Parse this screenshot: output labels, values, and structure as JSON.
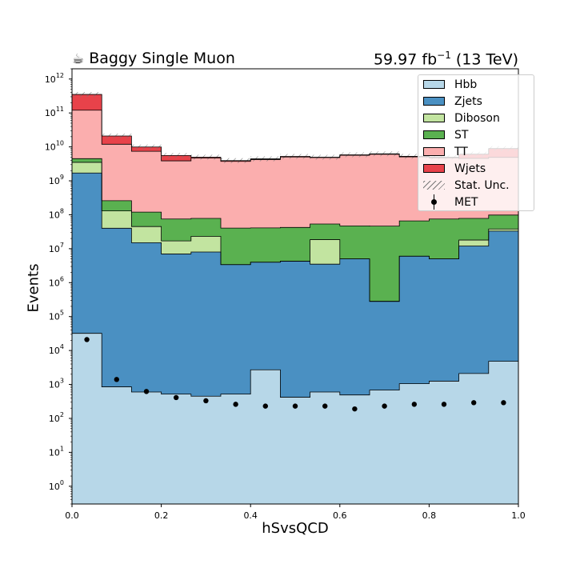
{
  "header": {
    "mug_icon": "coffee-mug-icon",
    "left_title": "Baggy Single Muon",
    "right_title_prefix": "59.97 fb",
    "right_title_sup": "−1",
    "right_title_suffix": " (13 TeV)"
  },
  "chart_data": {
    "type": "bar",
    "stacked": true,
    "xlabel": "hSvsQCD",
    "ylabel": "Events",
    "xlim": [
      0,
      1
    ],
    "ylim": [
      0.3,
      2000000000000
    ],
    "yscale": "log",
    "x_ticks": [
      "0.0",
      "0.2",
      "0.4",
      "0.6",
      "0.8",
      "1.0"
    ],
    "y_ticks": [
      "10^0",
      "10^1",
      "10^2",
      "10^3",
      "10^4",
      "10^5",
      "10^6",
      "10^7",
      "10^8",
      "10^9",
      "10^10",
      "10^11",
      "10^12"
    ],
    "bin_edges": [
      0,
      0.0667,
      0.1333,
      0.2,
      0.2667,
      0.3333,
      0.4,
      0.4667,
      0.5333,
      0.6,
      0.6667,
      0.7333,
      0.8,
      0.8667,
      0.9333,
      1.0
    ],
    "series": [
      {
        "name": "Hbb",
        "color": "#b7d7e8",
        "values": [
          32000,
          850,
          600,
          520,
          450,
          520,
          2700,
          420,
          600,
          490,
          680,
          1050,
          1250,
          2100,
          4800
        ]
      },
      {
        "name": "Zjets",
        "color": "#4a90c2",
        "values": [
          1700000000,
          40000000,
          15000000,
          7000000,
          8000000,
          3400000,
          4000000,
          4300000,
          3500000,
          5000000,
          280000,
          6000000,
          5000000,
          12000000,
          33000000
        ]
      },
      {
        "name": "Diboson",
        "color": "#c2e4a0",
        "values": [
          1800000000,
          90000000,
          30000000,
          10000000,
          15000000,
          0,
          0,
          0,
          15000000,
          0,
          0,
          0,
          0,
          6000000,
          5000000
        ]
      },
      {
        "name": "ST",
        "color": "#5ab150",
        "values": [
          1000000000,
          130000000,
          75000000,
          58000000,
          55000000,
          37000000,
          37000000,
          38000000,
          35000000,
          42000000,
          46000000,
          60000000,
          70000000,
          60000000,
          60000000
        ]
      },
      {
        "name": "TT",
        "color": "#fbaeae",
        "values": [
          116000000000,
          11700000000,
          7300000000,
          3800000000,
          4600000000,
          3700000000,
          4200000000,
          5000000000,
          4800000000,
          5600000000,
          6000000000,
          5000000000,
          4700000000,
          4500000000,
          4800000000
        ]
      },
      {
        "name": "Wjets",
        "color": "#e8424a",
        "values": [
          230000000000,
          9000000000,
          2500000000,
          1700000000,
          300000000,
          200000000,
          200000000,
          200000000,
          100000000,
          200000000,
          200000000,
          200000000,
          200000000,
          1500000000,
          4000000000
        ]
      }
    ],
    "stat_unc": {
      "name": "Stat. Unc.",
      "hatch": "///"
    },
    "data_points": {
      "name": "MET",
      "color": "#000000",
      "x": [
        0.0333,
        0.1,
        0.1667,
        0.2333,
        0.3,
        0.3667,
        0.4333,
        0.5,
        0.5667,
        0.6333,
        0.7,
        0.7667,
        0.8333,
        0.9,
        0.9667
      ],
      "y": [
        21000,
        1400,
        620,
        410,
        330,
        260,
        230,
        230,
        230,
        190,
        230,
        260,
        260,
        290,
        290
      ]
    },
    "legend": {
      "location": "top-right",
      "entries": [
        "Hbb",
        "Zjets",
        "Diboson",
        "ST",
        "TT",
        "Wjets",
        "Stat. Unc.",
        "MET"
      ]
    }
  }
}
